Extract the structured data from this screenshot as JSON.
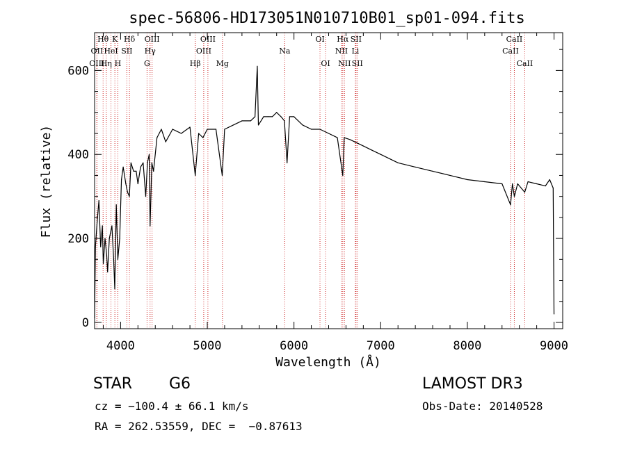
{
  "chart_data": {
    "type": "line",
    "title": "spec-56806-HD173051N010710B01_sp01-094.fits",
    "xlabel": "Wavelength (Å)",
    "ylabel": "Flux (relative)",
    "xlim": [
      3700,
      9100
    ],
    "ylim": [
      -15,
      690
    ],
    "xticks": [
      4000,
      5000,
      6000,
      7000,
      8000,
      9000
    ],
    "yticks": [
      0,
      200,
      400,
      600
    ],
    "series": [
      {
        "name": "spectrum",
        "x": [
          3700,
          3710,
          3730,
          3750,
          3770,
          3790,
          3800,
          3820,
          3840,
          3850,
          3870,
          3900,
          3920,
          3933,
          3950,
          3968,
          3990,
          4010,
          4030,
          4060,
          4080,
          4101,
          4120,
          4150,
          4180,
          4200,
          4230,
          4260,
          4290,
          4310,
          4330,
          4340,
          4360,
          4380,
          4420,
          4470,
          4520,
          4600,
          4700,
          4800,
          4861,
          4900,
          4950,
          5000,
          5100,
          5172,
          5200,
          5300,
          5400,
          5500,
          5550,
          5577,
          5590,
          5650,
          5700,
          5750,
          5800,
          5850,
          5890,
          5920,
          5950,
          6000,
          6100,
          6200,
          6300,
          6400,
          6500,
          6563,
          6580,
          6650,
          6700,
          6800,
          6900,
          7000,
          7200,
          7400,
          7600,
          7800,
          8000,
          8200,
          8400,
          8498,
          8520,
          8542,
          8580,
          8662,
          8700,
          8800,
          8900,
          8950,
          8990,
          9000
        ],
        "y": [
          10,
          180,
          240,
          290,
          180,
          230,
          140,
          200,
          160,
          120,
          200,
          230,
          150,
          80,
          280,
          150,
          200,
          340,
          370,
          330,
          310,
          300,
          380,
          360,
          360,
          330,
          370,
          380,
          300,
          380,
          400,
          230,
          380,
          360,
          440,
          460,
          430,
          460,
          450,
          465,
          350,
          450,
          440,
          460,
          460,
          350,
          460,
          470,
          480,
          480,
          490,
          610,
          470,
          490,
          490,
          490,
          500,
          490,
          480,
          380,
          490,
          490,
          470,
          460,
          460,
          450,
          440,
          350,
          440,
          435,
          430,
          420,
          410,
          400,
          380,
          370,
          360,
          350,
          340,
          335,
          330,
          280,
          330,
          300,
          330,
          310,
          335,
          330,
          325,
          340,
          320,
          20
        ]
      }
    ],
    "spectral_lines": [
      {
        "label": "Hθ",
        "wl": 3798,
        "row": 0
      },
      {
        "label": "K",
        "wl": 3934,
        "row": 0
      },
      {
        "label": "Hδ",
        "wl": 4102,
        "row": 0
      },
      {
        "label": "OIII",
        "wl": 4363,
        "row": 0
      },
      {
        "label": "OIII",
        "wl": 5007,
        "row": 0
      },
      {
        "label": "OI",
        "wl": 6300,
        "row": 0
      },
      {
        "label": "Hα",
        "wl": 6563,
        "row": 0
      },
      {
        "label": "SII",
        "wl": 6716,
        "row": 0
      },
      {
        "label": "CaII",
        "wl": 8542,
        "row": 0
      },
      {
        "label": "OII",
        "wl": 3727,
        "row": 1
      },
      {
        "label": "HeI",
        "wl": 3889,
        "row": 1
      },
      {
        "label": "SII",
        "wl": 4072,
        "row": 1
      },
      {
        "label": "Hγ",
        "wl": 4340,
        "row": 1
      },
      {
        "label": "OIII",
        "wl": 4959,
        "row": 1
      },
      {
        "label": "Na",
        "wl": 5893,
        "row": 1
      },
      {
        "label": "NII",
        "wl": 6548,
        "row": 1
      },
      {
        "label": "Li",
        "wl": 6708,
        "row": 1
      },
      {
        "label": "CaII",
        "wl": 8498,
        "row": 1
      },
      {
        "label": "OIII",
        "wl": 3726,
        "row": 2
      },
      {
        "label": "Hη",
        "wl": 3835,
        "row": 2
      },
      {
        "label": "H",
        "wl": 3968,
        "row": 2
      },
      {
        "label": "G",
        "wl": 4305,
        "row": 2
      },
      {
        "label": "Hβ",
        "wl": 4861,
        "row": 2
      },
      {
        "label": "Mg",
        "wl": 5175,
        "row": 2
      },
      {
        "label": "OI",
        "wl": 6364,
        "row": 2
      },
      {
        "label": "NII",
        "wl": 6583,
        "row": 2
      },
      {
        "label": "SII",
        "wl": 6731,
        "row": 2
      },
      {
        "label": "CaII",
        "wl": 8662,
        "row": 2
      }
    ]
  },
  "info": {
    "object_class": "STAR",
    "subclass": "G6",
    "survey": "LAMOST DR3",
    "redshift_line": "cz = −100.4 ± 66.1 km/s",
    "obs_date": "Obs-Date: 20140528",
    "coords": "RA = 262.53559, DEC =  −0.87613"
  },
  "colors": {
    "line_marker": "#d03030",
    "spectrum": "#000000"
  }
}
